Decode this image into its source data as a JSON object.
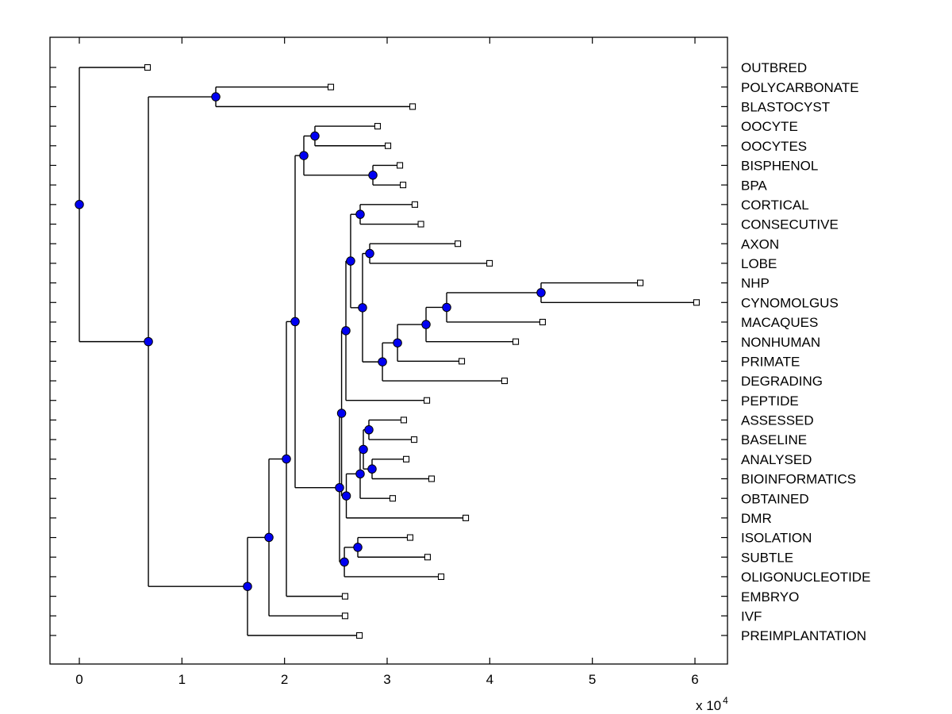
{
  "figure": {
    "background": "#ffffff",
    "axis_color": "#000000",
    "branch_color": "#000000",
    "internal_node_marker": {
      "shape": "circle",
      "fill": "#0000f2",
      "edge": "#000000",
      "diameter": 10.5
    },
    "leaf_marker": {
      "shape": "square",
      "fill": "#ffffff",
      "edge": "#000000",
      "size": 7
    }
  },
  "axis": {
    "multiplier_base": "x 10",
    "multiplier_exponent": "4"
  },
  "chart_data": {
    "type": "dendrogram",
    "orientation": "horizontal-leaves-right",
    "title": "",
    "xlabel": "",
    "ylabel": "",
    "grid": false,
    "x_axis": {
      "ticks": [
        0,
        1,
        2,
        3,
        4,
        5,
        6
      ],
      "multiplier": "x 10^4",
      "range": [
        0,
        6.32
      ],
      "tick_dir": "in"
    },
    "leaves": [
      {
        "label": "OUTBRED",
        "x": 0.665
      },
      {
        "label": "POLYCARBONATE",
        "x": 2.451
      },
      {
        "label": "BLASTOCYST",
        "x": 3.248
      },
      {
        "label": "OOCYTE",
        "x": 2.907
      },
      {
        "label": "OOCYTES",
        "x": 3.008
      },
      {
        "label": "BISPHENOL",
        "x": 3.124
      },
      {
        "label": "BPA",
        "x": 3.155
      },
      {
        "label": "CORTICAL",
        "x": 3.27
      },
      {
        "label": "CONSECUTIVE",
        "x": 3.329
      },
      {
        "label": "AXON",
        "x": 3.689
      },
      {
        "label": "LOBE",
        "x": 3.998
      },
      {
        "label": "NHP",
        "x": 5.467
      },
      {
        "label": "CYNOMOLGUS",
        "x": 6.015
      },
      {
        "label": "MACAQUES",
        "x": 4.515
      },
      {
        "label": "NONHUMAN",
        "x": 4.253
      },
      {
        "label": "PRIMATE",
        "x": 3.727
      },
      {
        "label": "DEGRADING",
        "x": 4.144
      },
      {
        "label": "PEPTIDE",
        "x": 3.387
      },
      {
        "label": "ASSESSED",
        "x": 3.162
      },
      {
        "label": "BASELINE",
        "x": 3.263
      },
      {
        "label": "ANALYSED",
        "x": 3.186
      },
      {
        "label": "BIOINFORMATICS",
        "x": 3.433
      },
      {
        "label": "OBTAINED",
        "x": 3.054
      },
      {
        "label": "DMR",
        "x": 3.766
      },
      {
        "label": "ISOLATION",
        "x": 3.224
      },
      {
        "label": "SUBTLE",
        "x": 3.394
      },
      {
        "label": "OLIGONUCLEOTIDE",
        "x": 3.526
      },
      {
        "label": "EMBRYO",
        "x": 2.59
      },
      {
        "label": "IVF",
        "x": 2.59
      },
      {
        "label": "PREIMPLANTATION",
        "x": 2.73
      }
    ],
    "internal_nodes": [
      {
        "id": "n01",
        "x": 0.0,
        "children": [
          "OUTBRED",
          "n02"
        ]
      },
      {
        "id": "n02",
        "x": 0.673,
        "children": [
          "n03",
          "n04"
        ]
      },
      {
        "id": "n03",
        "x": 1.33,
        "children": [
          "POLYCARBONATE",
          "BLASTOCYST"
        ]
      },
      {
        "id": "n04",
        "x": 1.639,
        "children": [
          "n05",
          "PREIMPLANTATION"
        ]
      },
      {
        "id": "n05",
        "x": 1.848,
        "children": [
          "n06",
          "IVF"
        ]
      },
      {
        "id": "n06",
        "x": 2.018,
        "children": [
          "n07",
          "EMBRYO"
        ]
      },
      {
        "id": "n07",
        "x": 2.103,
        "children": [
          "n08",
          "n11"
        ]
      },
      {
        "id": "n08",
        "x": 2.188,
        "children": [
          "n09",
          "n10"
        ]
      },
      {
        "id": "n09",
        "x": 2.296,
        "children": [
          "OOCYTE",
          "OOCYTES"
        ]
      },
      {
        "id": "n10",
        "x": 2.861,
        "children": [
          "BISPHENOL",
          "BPA"
        ]
      },
      {
        "id": "n11",
        "x": 2.536,
        "children": [
          "n12",
          "n28"
        ]
      },
      {
        "id": "n12",
        "x": 2.556,
        "children": [
          "n13",
          "n23"
        ]
      },
      {
        "id": "n13",
        "x": 2.598,
        "children": [
          "n14",
          "PEPTIDE"
        ]
      },
      {
        "id": "n14",
        "x": 2.644,
        "children": [
          "n15",
          "n16"
        ]
      },
      {
        "id": "n15",
        "x": 2.737,
        "children": [
          "CORTICAL",
          "CONSECUTIVE"
        ]
      },
      {
        "id": "n16",
        "x": 2.76,
        "children": [
          "n17",
          "n18"
        ]
      },
      {
        "id": "n17",
        "x": 2.83,
        "children": [
          "AXON",
          "LOBE"
        ]
      },
      {
        "id": "n18",
        "x": 2.954,
        "children": [
          "n19",
          "DEGRADING"
        ]
      },
      {
        "id": "n19",
        "x": 3.101,
        "children": [
          "n20",
          "PRIMATE"
        ]
      },
      {
        "id": "n20",
        "x": 3.379,
        "children": [
          "n21",
          "NONHUMAN"
        ]
      },
      {
        "id": "n21",
        "x": 3.58,
        "children": [
          "n22",
          "MACAQUES"
        ]
      },
      {
        "id": "n22",
        "x": 4.5,
        "children": [
          "NHP",
          "CYNOMOLGUS"
        ]
      },
      {
        "id": "n23",
        "x": 2.602,
        "children": [
          "n24",
          "DMR"
        ]
      },
      {
        "id": "n24",
        "x": 2.737,
        "children": [
          "n25",
          "OBTAINED"
        ]
      },
      {
        "id": "n25",
        "x": 2.768,
        "children": [
          "n26",
          "n27"
        ]
      },
      {
        "id": "n26",
        "x": 2.822,
        "children": [
          "ASSESSED",
          "BASELINE"
        ]
      },
      {
        "id": "n27",
        "x": 2.853,
        "children": [
          "ANALYSED",
          "BIOINFORMATICS"
        ]
      },
      {
        "id": "n28",
        "x": 2.583,
        "children": [
          "n29",
          "OLIGONUCLEOTIDE"
        ]
      },
      {
        "id": "n29",
        "x": 2.714,
        "children": [
          "ISOLATION",
          "SUBTLE"
        ]
      }
    ]
  }
}
